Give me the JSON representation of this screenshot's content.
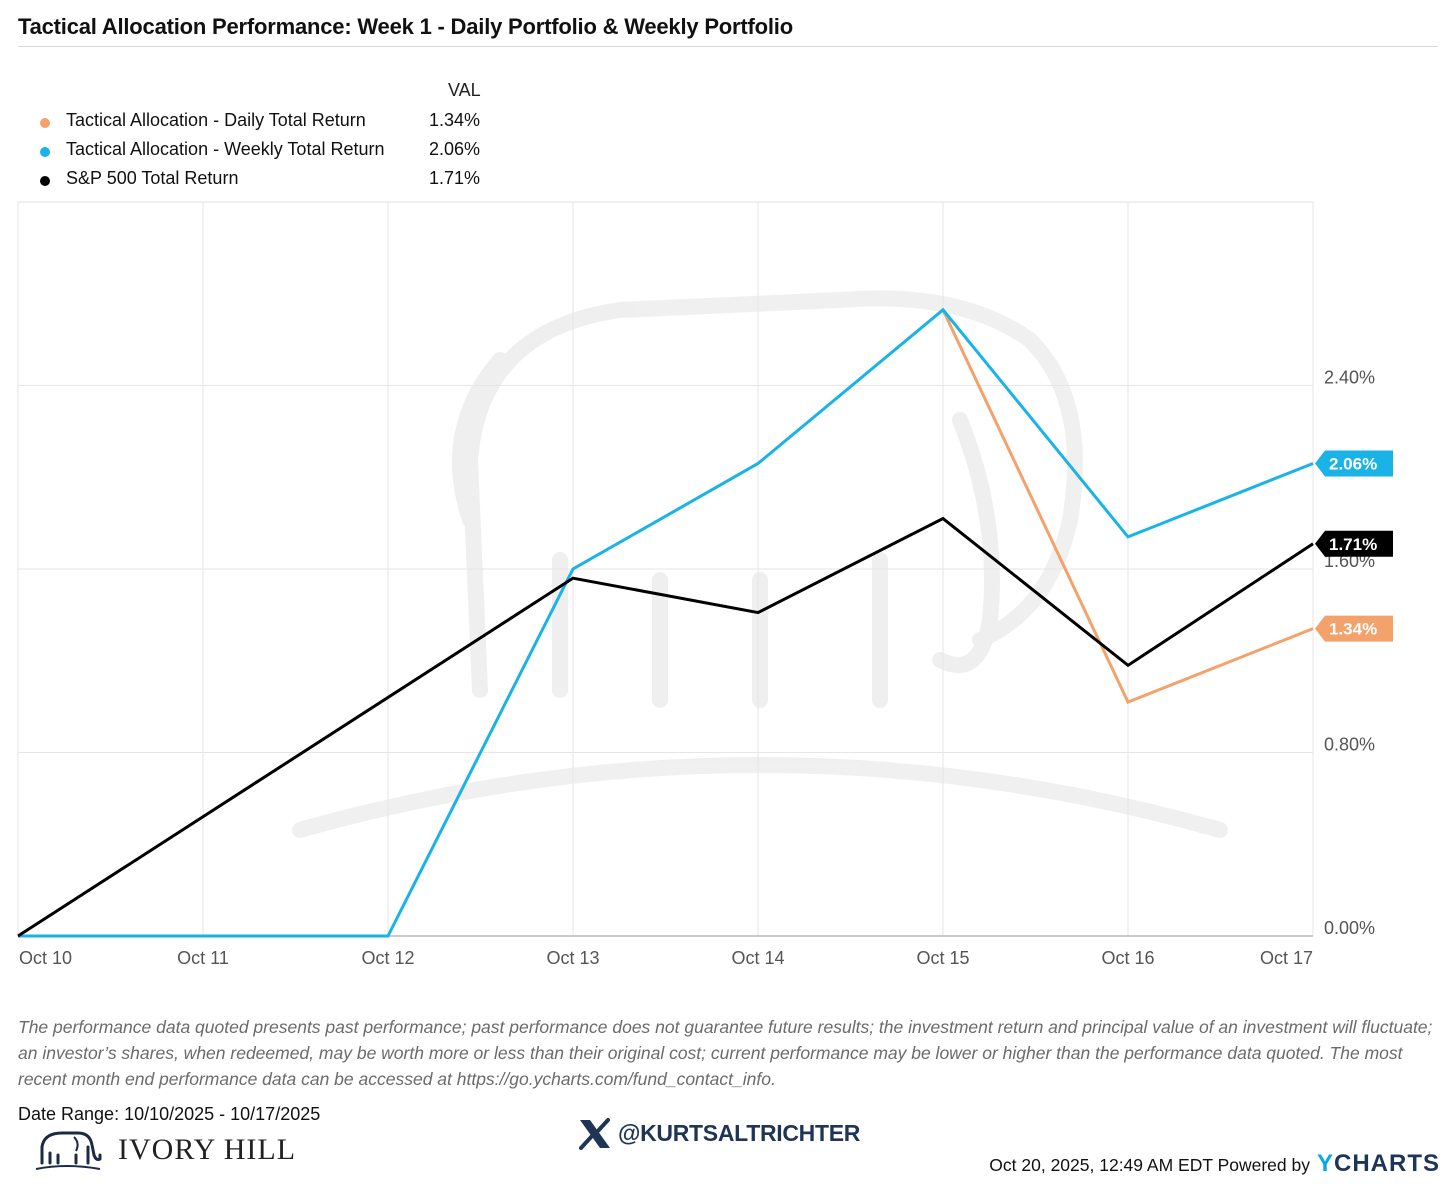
{
  "title": "Tactical Allocation Performance: Week 1 - Daily Portfolio & Weekly Portfolio",
  "legend": {
    "value_header": "VAL",
    "items": [
      {
        "name": "Tactical Allocation - Daily Total Return",
        "value": "1.34%",
        "color": "#f4a26b"
      },
      {
        "name": "Tactical Allocation - Weekly Total Return",
        "value": "2.06%",
        "color": "#1ab3e8"
      },
      {
        "name": "S&P 500 Total Return",
        "value": "1.71%",
        "color": "#000000"
      }
    ]
  },
  "chart_data": {
    "type": "line",
    "x": [
      "Oct 10",
      "Oct 11",
      "Oct 12",
      "Oct 13",
      "Oct 14",
      "Oct 15",
      "Oct 16",
      "Oct 17"
    ],
    "y_ticks": [
      "0.00%",
      "0.80%",
      "1.60%",
      "2.40%"
    ],
    "y_tick_values": [
      0,
      0.8,
      1.6,
      2.4
    ],
    "ylim": [
      0,
      3.2
    ],
    "grid": true,
    "legend_position": "top-left",
    "series": [
      {
        "name": "Tactical Allocation - Daily Total Return",
        "color": "#f4a26b",
        "points": [
          [
            5,
            2.73
          ],
          [
            6,
            1.02
          ],
          [
            7,
            1.34
          ]
        ]
      },
      {
        "name": "Tactical Allocation - Weekly Total Return",
        "color": "#1ab3e8",
        "points": [
          [
            0,
            0
          ],
          [
            1,
            0
          ],
          [
            2,
            0
          ],
          [
            3,
            1.6
          ],
          [
            4,
            2.06
          ],
          [
            5,
            2.73
          ],
          [
            6,
            1.74
          ],
          [
            7,
            2.06
          ]
        ]
      },
      {
        "name": "S&P 500 Total Return",
        "color": "#000000",
        "points": [
          [
            0,
            0
          ],
          [
            3,
            1.56
          ],
          [
            4,
            1.41
          ],
          [
            5,
            1.82
          ],
          [
            6,
            1.18
          ],
          [
            7,
            1.71
          ]
        ]
      }
    ],
    "end_labels": [
      {
        "text": "2.06%",
        "value": 2.06,
        "color": "#1ab3e8"
      },
      {
        "text": "1.71%",
        "value": 1.71,
        "color": "#000000"
      },
      {
        "text": "1.34%",
        "value": 1.34,
        "color": "#f4a26b"
      }
    ]
  },
  "disclaimer": "The performance data quoted presents past performance; past performance does not guarantee future results; the investment return and principal value of an investment will fluctuate; an investor’s shares, when redeemed, may be worth more or less than their original cost; current performance may be lower or higher than the performance data quoted. The most recent month end performance data can be accessed at https://go.ycharts.com/fund_contact_info.",
  "date_range": "Date Range: 10/10/2025 - 10/17/2025",
  "brand_name": "IVORY HILL",
  "handle": "@KURTSALTRICHTER",
  "footer_date": "Oct 20, 2025, 12:49 AM EDT Powered by",
  "powered_logo": {
    "first": "Y",
    "rest": "CHARTS"
  }
}
